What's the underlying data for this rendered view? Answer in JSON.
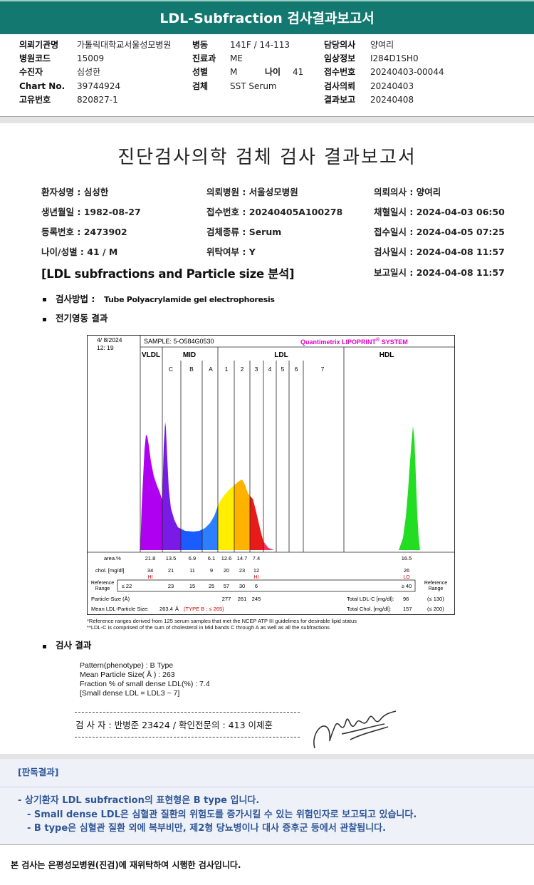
{
  "header": {
    "title": "LDL-Subfraction 검사결과보고서"
  },
  "info": {
    "institution": {
      "label": "의뢰기관명",
      "value": "가톨릭대학교서울성모병원"
    },
    "ward": {
      "label": "병동",
      "value": "141F / 14-113"
    },
    "doctor": {
      "label": "담당의사",
      "value": "양여리"
    },
    "hospital_code": {
      "label": "병원코드",
      "value": "15009"
    },
    "department": {
      "label": "진료과",
      "value": "ME"
    },
    "clinical": {
      "label": "임상정보",
      "value": "I284D1SH0"
    },
    "patient": {
      "label": "수진자",
      "value": "심성한"
    },
    "sex": {
      "label": "성별",
      "value": "M"
    },
    "age": {
      "label": "나이",
      "value": 41
    },
    "receipt_no": {
      "label": "접수번호",
      "value": "20240403-00044"
    },
    "chart_no": {
      "label": "Chart No.",
      "value": "39744924"
    },
    "specimen": {
      "label": "검체",
      "value": "SST Serum"
    },
    "requested": {
      "label": "검사의뢰",
      "value": "20240403"
    },
    "unique_no": {
      "label": "고유번호",
      "value": "820827-1"
    },
    "reported": {
      "label": "결과보고",
      "value": "20240408"
    }
  },
  "report": {
    "title": "진단검사의학 검체 검사 결과보고서",
    "fields": [
      "환자성명 : 심성한",
      "생년월일 : 1982-08-27",
      "등록번호 : 2473902",
      "나이/성별 : 41 / M",
      "의뢰병원 : 서울성모병원",
      "접수번호 : 20240405A100278",
      "검체종류 : Serum",
      "위탁여부 : Y",
      "의뢰의사 : 양여리",
      "채혈일시 : 2024-04-03 06:50",
      "접수일시 : 2024-04-05 07:25",
      "검사일시 : 2024-04-08 11:57",
      "보고일시 : 2024-04-08 11:57"
    ],
    "section": "[LDL subfractions and Particle size 분석]",
    "method_label": "검사방법 :",
    "method": "Tube Polyacrylamide gel electrophoresis",
    "electrophoresis": "전기영동 결과",
    "result_heading": "검사 결과",
    "results": [
      "Pattern(phenotype) : B Type",
      "Mean Particle Size( Å ) : 263",
      "Fraction % of small dense LDL(%) : 7.4",
      "[Small dense LDL = LDL3 ~ 7]"
    ],
    "signature": "검 사 자 : 반병준  23424  /  확인전문의 : 413 이제훈"
  },
  "lipoprint": {
    "date": "4/  8/2024",
    "time": "12: 19",
    "sample": "SAMPLE:   5-O584G0530",
    "brand": "Quantimetrix LIPOPRINT",
    "brand_mark": "®",
    "brand_system": " SYSTEM",
    "bands": [
      "VLDL",
      "MID",
      "LDL",
      "HDL"
    ],
    "subbands": [
      "C",
      "B",
      "A",
      "1",
      "2",
      "3",
      "4",
      "5",
      "6",
      "7"
    ],
    "area_label": "area.%",
    "area": [
      21.8,
      13.5,
      6.9,
      6.1,
      12.6,
      14.7,
      7.4,
      16.5
    ],
    "chol_label": "chol. [mg/dl]",
    "chol": [
      34,
      21,
      11,
      9,
      20,
      23,
      12,
      26
    ],
    "chol_flags": [
      "HI",
      "HI",
      "LO"
    ],
    "reference_label": [
      "Reference",
      "Range"
    ],
    "reference": [
      "≤ 22",
      23,
      15,
      25,
      57,
      30,
      6,
      "≥ 40"
    ],
    "particle_label": "Particle-Size (Å)",
    "particle": [
      277,
      261,
      245
    ],
    "mean_label": "Mean LDL-Particle Size:",
    "mean_size": 263.4,
    "mean_unit": "Å",
    "type_note": "(TYPE B ; ≤ 265)",
    "total_ldl_label": "Total LDL-C [mg/dl]:",
    "total_ldl": 96,
    "total_ldl_ref": "(≤ 130)",
    "total_chol_label": "Total Chol. [mg/dl]:",
    "total_chol": 157,
    "total_chol_ref": "(≤ 200)",
    "notes": [
      "*Reference ranges derived from 125 serum samples that met the NCEP ATP III guidelines for desirable lipid status",
      "**LDL-C is comprised of the sum of cholesterol in Mid bands C through A as well as all the subfractions"
    ]
  },
  "interpretation": {
    "title": "[판독결과]",
    "lines": [
      "- 상기환자 LDL subfraction의 표현형은 B type 입니다.",
      "-  Small dense LDL은 심혈관 질환의 위험도를 증가시킬 수 있는 위험인자로 보고되고 있습니다.",
      "-  B type은 심혈관 질환 외에 복부비만, 제2형 당뇨병이나 대사 증후군 등에서 관찰됩니다."
    ]
  },
  "footer": "본 검사는 은평성모병원(진검)에 재위탁하여 시행한 검사입니다."
}
